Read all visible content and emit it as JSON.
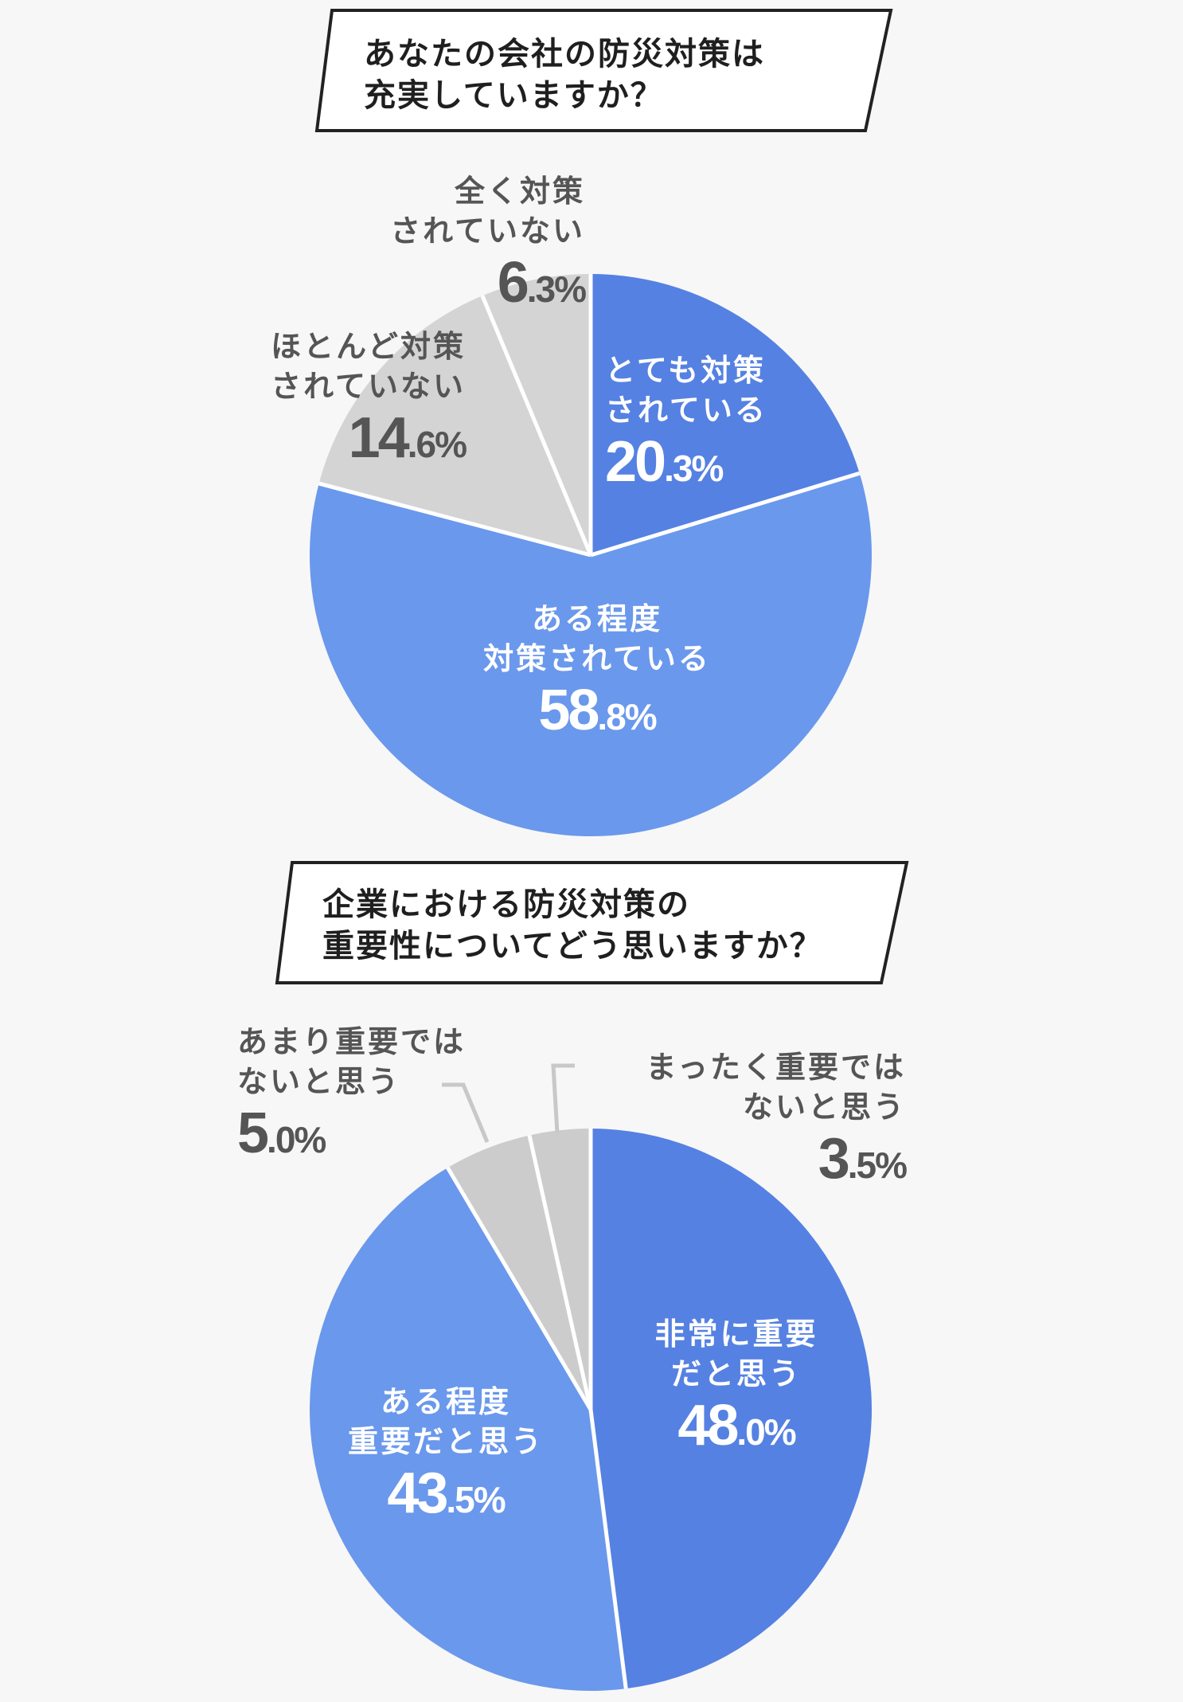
{
  "chart1": {
    "question_line1": "あなたの会社の防災対策は",
    "question_line2": "充実していますか？",
    "slices": [
      {
        "label_line1": "とても対策",
        "label_line2": "されている",
        "value_int": "20",
        "value_dec": ".3%",
        "color": "#5581e2"
      },
      {
        "label_line1": "ある程度",
        "label_line2": "対策されている",
        "value_int": "58",
        "value_dec": ".8%",
        "color": "#6a98ec"
      },
      {
        "label_line1": "ほとんど対策",
        "label_line2": "されていない",
        "value_int": "14",
        "value_dec": ".6%",
        "color": "#d4d4d4"
      },
      {
        "label_line1": "全く対策",
        "label_line2": "されていない",
        "value_int": "6",
        "value_dec": ".3%",
        "color": "#d4d4d4"
      }
    ]
  },
  "chart2": {
    "question_line1": "企業における防災対策の",
    "question_line2": "重要性についてどう思いますか？",
    "slices": [
      {
        "label_line1": "非常に重要",
        "label_line2": "だと思う",
        "value_int": "48",
        "value_dec": ".0%",
        "color": "#5581e2"
      },
      {
        "label_line1": "ある程度",
        "label_line2": "重要だと思う",
        "value_int": "43",
        "value_dec": ".5%",
        "color": "#6a98ec"
      },
      {
        "label_line1": "あまり重要では",
        "label_line2": "ないと思う",
        "value_int": "5",
        "value_dec": ".0%",
        "color": "#cccccc"
      },
      {
        "label_line1": "まったく重要では",
        "label_line2": "ないと思う",
        "value_int": "3",
        "value_dec": ".5%",
        "color": "#cccccc"
      }
    ]
  },
  "chart_data": [
    {
      "type": "pie",
      "title": "あなたの会社の防災対策は充実していますか？",
      "categories": [
        "とても対策されている",
        "ある程度対策されている",
        "ほとんど対策されていない",
        "全く対策されていない"
      ],
      "values": [
        20.3,
        58.8,
        14.6,
        6.3
      ],
      "unit": "%",
      "colors": [
        "#5581e2",
        "#6a98ec",
        "#d4d4d4",
        "#d4d4d4"
      ],
      "start_angle": "12 o'clock, clockwise",
      "legend": "none (inline labels)"
    },
    {
      "type": "pie",
      "title": "企業における防災対策の重要性についてどう思いますか？",
      "categories": [
        "非常に重要だと思う",
        "ある程度重要だと思う",
        "あまり重要ではないと思う",
        "まったく重要ではないと思う"
      ],
      "values": [
        48.0,
        43.5,
        5.0,
        3.5
      ],
      "unit": "%",
      "colors": [
        "#5581e2",
        "#6a98ec",
        "#cccccc",
        "#cccccc"
      ],
      "start_angle": "12 o'clock, clockwise",
      "legend": "none (inline labels with leader lines for small slices)"
    }
  ]
}
